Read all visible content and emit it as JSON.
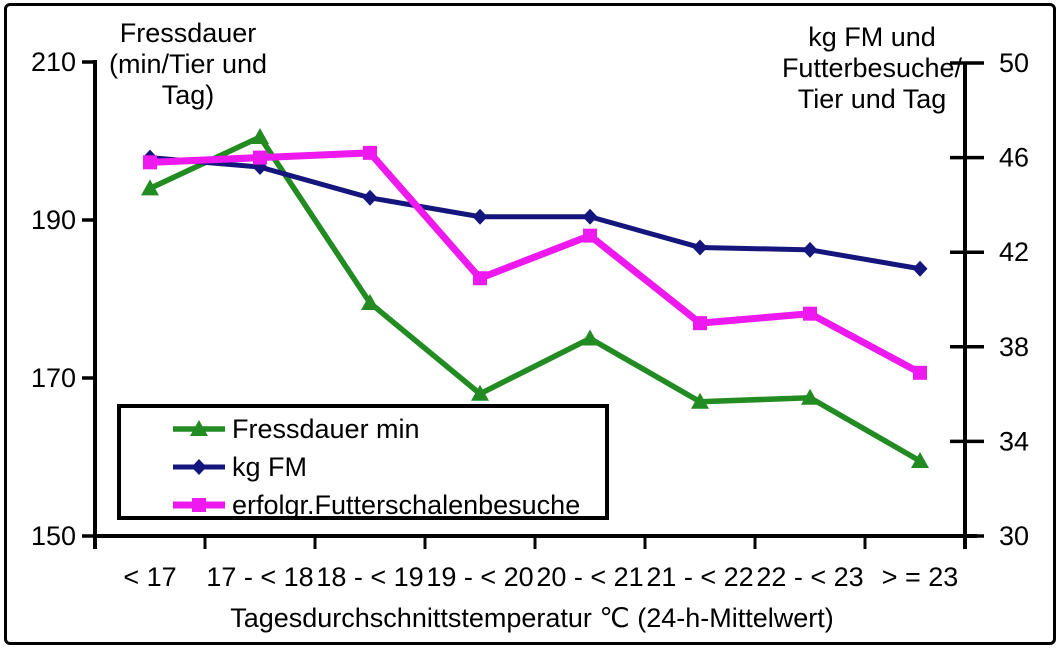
{
  "chart_data": {
    "type": "line",
    "categories": [
      "< 17",
      "17 - < 18",
      "18 - < 19",
      "19 - < 20",
      "20 - < 21",
      "21 - < 22",
      "22 - < 23",
      "> = 23"
    ],
    "x_axis": {
      "title": "Tagesdurchschnittstemperatur ℃ (24-h-Mittelwert)"
    },
    "left_axis": {
      "title_lines": [
        "Fressdauer",
        "(min/Tier und",
        "Tag)"
      ],
      "ticks": [
        210,
        190,
        170,
        150
      ],
      "min": 150,
      "max": 210
    },
    "right_axis": {
      "title_lines": [
        "kg FM und",
        "Futterbesuche/",
        "Tier und Tag"
      ],
      "ticks": [
        50,
        46,
        42,
        38,
        34,
        30
      ],
      "min": 30,
      "max": 50
    },
    "grid": false,
    "legend_position": "inside-bottom-left",
    "series": [
      {
        "name": "Fressdauer min",
        "axis": "left",
        "marker": "triangle",
        "color": "#228B22",
        "values": [
          194,
          200.5,
          179.5,
          168,
          175,
          167,
          167.5,
          159.5
        ]
      },
      {
        "name": "kg FM",
        "axis": "right",
        "marker": "diamond",
        "color": "#15157E",
        "values": [
          46,
          45.6,
          44.3,
          43.5,
          43.5,
          42.2,
          42.1,
          41.3
        ]
      },
      {
        "name": "erfolgr.Futterschalenbesuche",
        "axis": "right",
        "marker": "square",
        "color": "#EE19EE",
        "values": [
          45.8,
          46,
          46.2,
          40.9,
          42.7,
          39,
          39.4,
          36.9
        ]
      }
    ]
  },
  "colors": {
    "axis": "#000000",
    "text": "#000000",
    "background": "#FFFFFF"
  }
}
